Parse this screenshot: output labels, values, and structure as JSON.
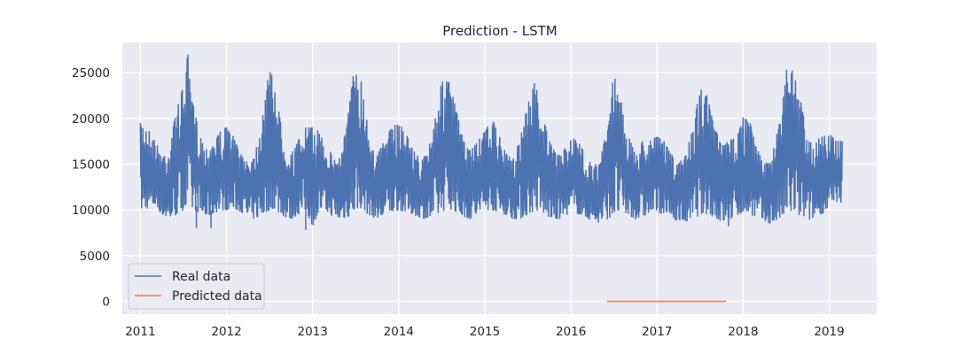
{
  "chart_data": {
    "type": "line",
    "title": "Prediction - LSTM",
    "xlabel": "",
    "ylabel": "",
    "xlim": [
      2010.79,
      2019.55
    ],
    "ylim": [
      -1400,
      28300
    ],
    "grid": true,
    "legend_position": "lower-left",
    "x_ticks": [
      "2011",
      "2012",
      "2013",
      "2014",
      "2015",
      "2016",
      "2017",
      "2018",
      "2019"
    ],
    "y_ticks": [
      "0",
      "5000",
      "10000",
      "15000",
      "20000",
      "25000"
    ],
    "x_tick_values": [
      2011,
      2012,
      2013,
      2014,
      2015,
      2016,
      2017,
      2018,
      2019
    ],
    "y_tick_values": [
      0,
      5000,
      10000,
      15000,
      20000,
      25000
    ],
    "series": [
      {
        "name": "Real data",
        "color": "#4c72b0",
        "x_range": [
          2011.0,
          2019.15
        ],
        "band_x": [
          2011.0,
          2011.08,
          2011.17,
          2011.25,
          2011.33,
          2011.42,
          2011.5,
          2011.55,
          2011.58,
          2011.67,
          2011.75,
          2011.83,
          2011.92,
          2012.0,
          2012.08,
          2012.17,
          2012.25,
          2012.33,
          2012.42,
          2012.5,
          2012.55,
          2012.58,
          2012.67,
          2012.75,
          2012.83,
          2012.92,
          2013.0,
          2013.08,
          2013.17,
          2013.25,
          2013.33,
          2013.42,
          2013.5,
          2013.55,
          2013.58,
          2013.67,
          2013.75,
          2013.83,
          2013.92,
          2014.0,
          2014.08,
          2014.17,
          2014.25,
          2014.33,
          2014.42,
          2014.5,
          2014.58,
          2014.67,
          2014.75,
          2014.83,
          2014.92,
          2015.0,
          2015.08,
          2015.17,
          2015.25,
          2015.33,
          2015.42,
          2015.5,
          2015.58,
          2015.67,
          2015.75,
          2015.83,
          2015.92,
          2016.0,
          2016.08,
          2016.17,
          2016.25,
          2016.33,
          2016.42,
          2016.5,
          2016.58,
          2016.67,
          2016.75,
          2016.83,
          2016.92,
          2017.0,
          2017.08,
          2017.17,
          2017.25,
          2017.33,
          2017.42,
          2017.5,
          2017.58,
          2017.67,
          2017.75,
          2017.83,
          2017.92,
          2018.0,
          2018.08,
          2018.17,
          2018.25,
          2018.33,
          2018.42,
          2018.5,
          2018.58,
          2018.67,
          2018.75,
          2018.83,
          2018.92,
          2019.0,
          2019.08,
          2019.15
        ],
        "band_high": [
          19500,
          19000,
          17500,
          16000,
          16500,
          21000,
          23500,
          27200,
          23000,
          19000,
          16500,
          17500,
          18500,
          19000,
          18000,
          16000,
          15500,
          16000,
          21000,
          25300,
          24500,
          22000,
          18000,
          16000,
          17500,
          19000,
          19000,
          18500,
          17000,
          15500,
          16000,
          21000,
          26800,
          25000,
          23000,
          18000,
          16000,
          17500,
          19000,
          19500,
          18500,
          16500,
          15500,
          16000,
          20000,
          24000,
          24000,
          21000,
          17500,
          16500,
          17500,
          18500,
          20000,
          18000,
          16000,
          15500,
          18500,
          21500,
          24000,
          20500,
          17500,
          16000,
          16500,
          18000,
          17500,
          16000,
          15000,
          15000,
          19000,
          25200,
          22000,
          18000,
          16000,
          17500,
          18000,
          18000,
          17500,
          16000,
          15000,
          16000,
          19000,
          23500,
          22500,
          19000,
          17000,
          17500,
          18000,
          20300,
          19500,
          16500,
          15000,
          15500,
          20000,
          25500,
          25300,
          22000,
          17500,
          17500,
          18000,
          18300,
          17500,
          17500
        ],
        "band_low": [
          10000,
          10200,
          10500,
          9500,
          9000,
          9500,
          10000,
          10500,
          10200,
          9800,
          9200,
          9500,
          10000,
          10000,
          10200,
          9800,
          9200,
          9000,
          9500,
          10000,
          10200,
          9900,
          9300,
          9000,
          9500,
          10000,
          8200,
          10000,
          9800,
          9200,
          9000,
          9300,
          10000,
          10300,
          10000,
          9400,
          9000,
          9300,
          9800,
          10000,
          9800,
          9500,
          9200,
          9000,
          9300,
          9800,
          10200,
          9800,
          9300,
          9000,
          9500,
          10000,
          10000,
          9800,
          9400,
          9000,
          9100,
          9500,
          10000,
          9700,
          9200,
          8900,
          9300,
          9800,
          9600,
          9200,
          8800,
          8600,
          9000,
          9500,
          9800,
          9400,
          9000,
          9200,
          9800,
          9800,
          9500,
          9100,
          8800,
          8700,
          9000,
          9500,
          9600,
          9200,
          8700,
          8900,
          9300,
          9800,
          9500,
          9200,
          8700,
          8500,
          9000,
          9600,
          9800,
          9300,
          8900,
          9200,
          9600,
          10400,
          10600,
          10800
        ],
        "dips": [
          [
            2011.65,
            8000
          ],
          [
            2011.82,
            8000
          ],
          [
            2012.92,
            7800
          ],
          [
            2017.83,
            8200
          ]
        ]
      },
      {
        "name": "Predicted data",
        "color": "#dd8452",
        "x": [
          2016.42,
          2017.8
        ],
        "y": [
          0,
          0
        ]
      }
    ]
  }
}
